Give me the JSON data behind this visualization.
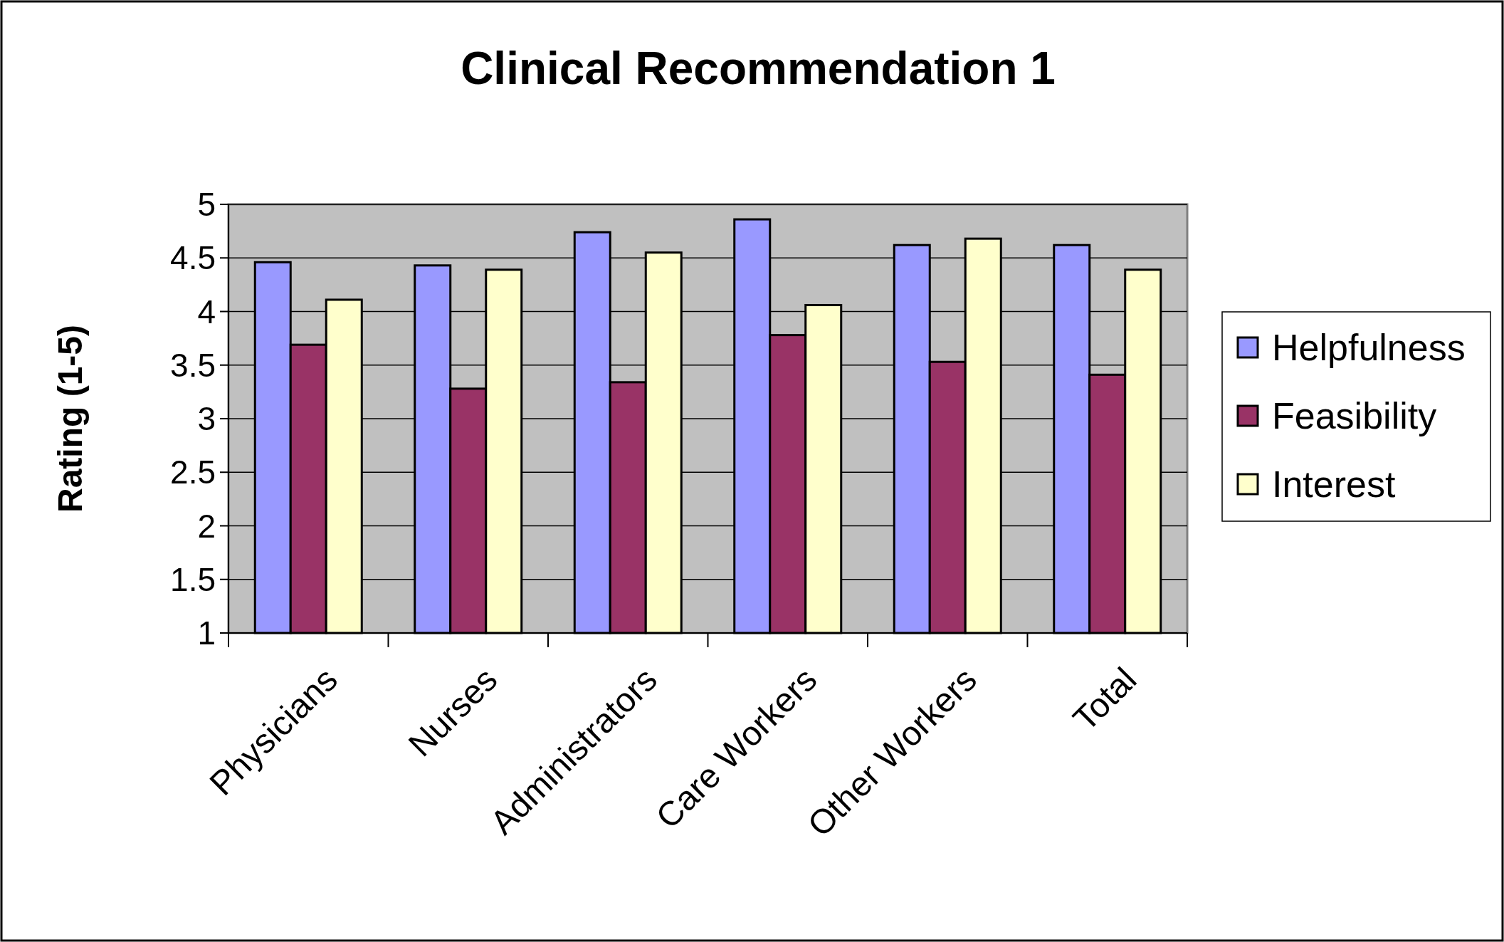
{
  "chart_data": {
    "type": "bar",
    "title": "Clinical Recommendation 1",
    "ylabel": "Rating (1-5)",
    "categories": [
      "Physicians",
      "Nurses",
      "Administrators",
      "Care Workers",
      "Other Workers",
      "Total"
    ],
    "series": [
      {
        "name": "Helpfulness",
        "color": "#9999ff",
        "values": [
          4.46,
          4.43,
          4.74,
          4.86,
          4.62,
          4.62
        ]
      },
      {
        "name": "Feasibility",
        "color": "#993366",
        "values": [
          3.69,
          3.28,
          3.34,
          3.78,
          3.53,
          3.41
        ]
      },
      {
        "name": "Interest",
        "color": "#ffffcc",
        "values": [
          4.11,
          4.39,
          4.55,
          4.06,
          4.68,
          4.39
        ]
      }
    ],
    "ylim": [
      1,
      5
    ],
    "yticks": [
      1,
      1.5,
      2,
      2.5,
      3,
      3.5,
      4,
      4.5,
      5
    ],
    "grid": "y",
    "legend": "right"
  }
}
